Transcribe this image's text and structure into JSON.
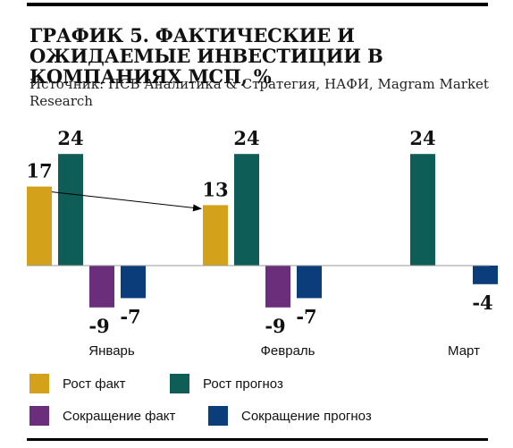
{
  "title": "ГРАФИК 5. ФАКТИЧЕСКИЕ И ОЖИДАЕМЫЕ ИНВЕСТИЦИИ В КОМПАНИЯХ МСП, %",
  "source": "Источник: ПСБ Аналитика & Стратегия, НАФИ, Magram Market Research",
  "chart_data": {
    "type": "bar",
    "title": "ГРАФИК 5. ФАКТИЧЕСКИЕ И ОЖИДАЕМЫЕ ИНВЕСТИЦИИ В КОМПАНИЯХ МСП, %",
    "xlabel": "",
    "ylabel": "",
    "categories": [
      "Январь",
      "Февраль",
      "Март"
    ],
    "series": [
      {
        "name": "Рост факт",
        "values": [
          17,
          13,
          null
        ],
        "labels": [
          "17",
          "13",
          ""
        ],
        "color": "#D4A21A"
      },
      {
        "name": "Рост прогноз",
        "values": [
          24,
          24,
          24
        ],
        "labels": [
          "24",
          "24",
          "24"
        ],
        "color": "#0E5E57"
      },
      {
        "name": "Сокращение факт",
        "values": [
          -9,
          -9,
          null
        ],
        "labels": [
          "-9",
          "-9",
          ""
        ],
        "color": "#6B2E7A"
      },
      {
        "name": "Сокращение прогноз",
        "values": [
          -7,
          -7,
          -4
        ],
        "labels": [
          "-7",
          "-7",
          "-4"
        ],
        "color": "#0A3D7A"
      }
    ],
    "ylim": [
      -12,
      28
    ],
    "grid": false,
    "legend": "bottom"
  }
}
